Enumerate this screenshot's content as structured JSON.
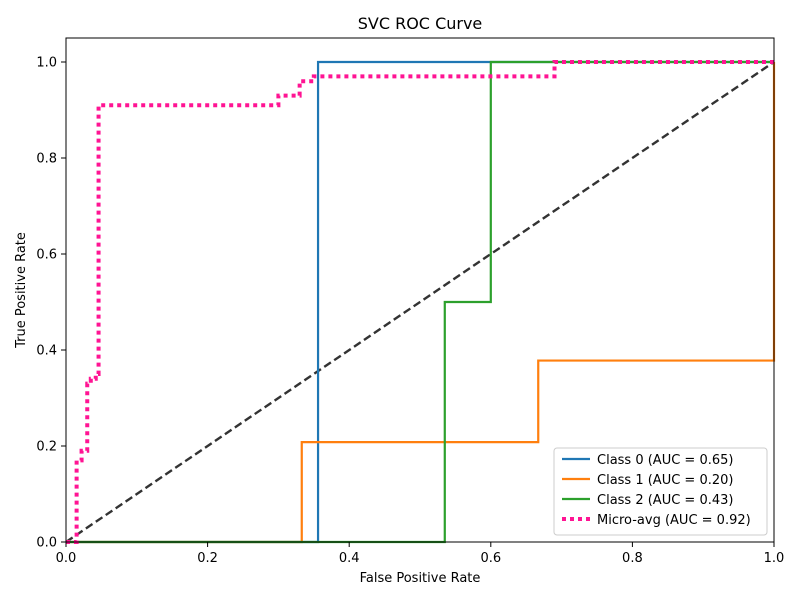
{
  "chart_data": {
    "type": "line",
    "title": "SVC ROC Curve",
    "xlabel": "False Positive Rate",
    "ylabel": "True Positive Rate",
    "xlim": [
      0.0,
      1.0
    ],
    "ylim": [
      0.0,
      1.05
    ],
    "x_ticks": [
      "0.0",
      "0.2",
      "0.4",
      "0.6",
      "0.8",
      "1.0"
    ],
    "y_ticks": [
      "0.0",
      "0.2",
      "0.4",
      "0.6",
      "0.8",
      "1.0"
    ],
    "grid": false,
    "legend_position": "lower-right",
    "series": [
      {
        "name": "Class 0 (AUC = 0.65)",
        "color": "#1f77b4",
        "style": "solid",
        "x": [
          0.0,
          0.356,
          0.356,
          1.0
        ],
        "y": [
          0.0,
          0.0,
          1.0,
          1.0
        ]
      },
      {
        "name": "Class 1 (AUC = 0.20)",
        "color": "#ff7f0e",
        "style": "solid",
        "x": [
          0.0,
          0.333,
          0.333,
          0.667,
          0.667,
          1.0,
          1.0
        ],
        "y": [
          0.0,
          0.0,
          0.208,
          0.208,
          0.378,
          0.378,
          1.0
        ]
      },
      {
        "name": "Class 2 (AUC = 0.43)",
        "color": "#2ca02c",
        "style": "solid",
        "x": [
          0.0,
          0.535,
          0.535,
          0.6,
          0.6,
          1.0
        ],
        "y": [
          0.0,
          0.0,
          0.5,
          0.5,
          1.0,
          1.0
        ]
      },
      {
        "name": "Micro-avg (AUC = 0.92)",
        "color": "#ff1493",
        "style": "dotted",
        "x": [
          0.0,
          0.015,
          0.015,
          0.022,
          0.022,
          0.03,
          0.03,
          0.035,
          0.035,
          0.042,
          0.042,
          0.046,
          0.046,
          0.3,
          0.3,
          0.33,
          0.33,
          0.35,
          0.35,
          0.69,
          0.69,
          1.0
        ],
        "y": [
          0.0,
          0.0,
          0.17,
          0.17,
          0.19,
          0.19,
          0.33,
          0.33,
          0.34,
          0.34,
          0.35,
          0.35,
          0.91,
          0.91,
          0.93,
          0.93,
          0.96,
          0.96,
          0.97,
          0.97,
          1.0,
          1.0
        ]
      },
      {
        "name": "",
        "color": "#333333",
        "style": "dashed",
        "x": [
          0.0,
          1.0
        ],
        "y": [
          0.0,
          1.0
        ]
      }
    ]
  }
}
